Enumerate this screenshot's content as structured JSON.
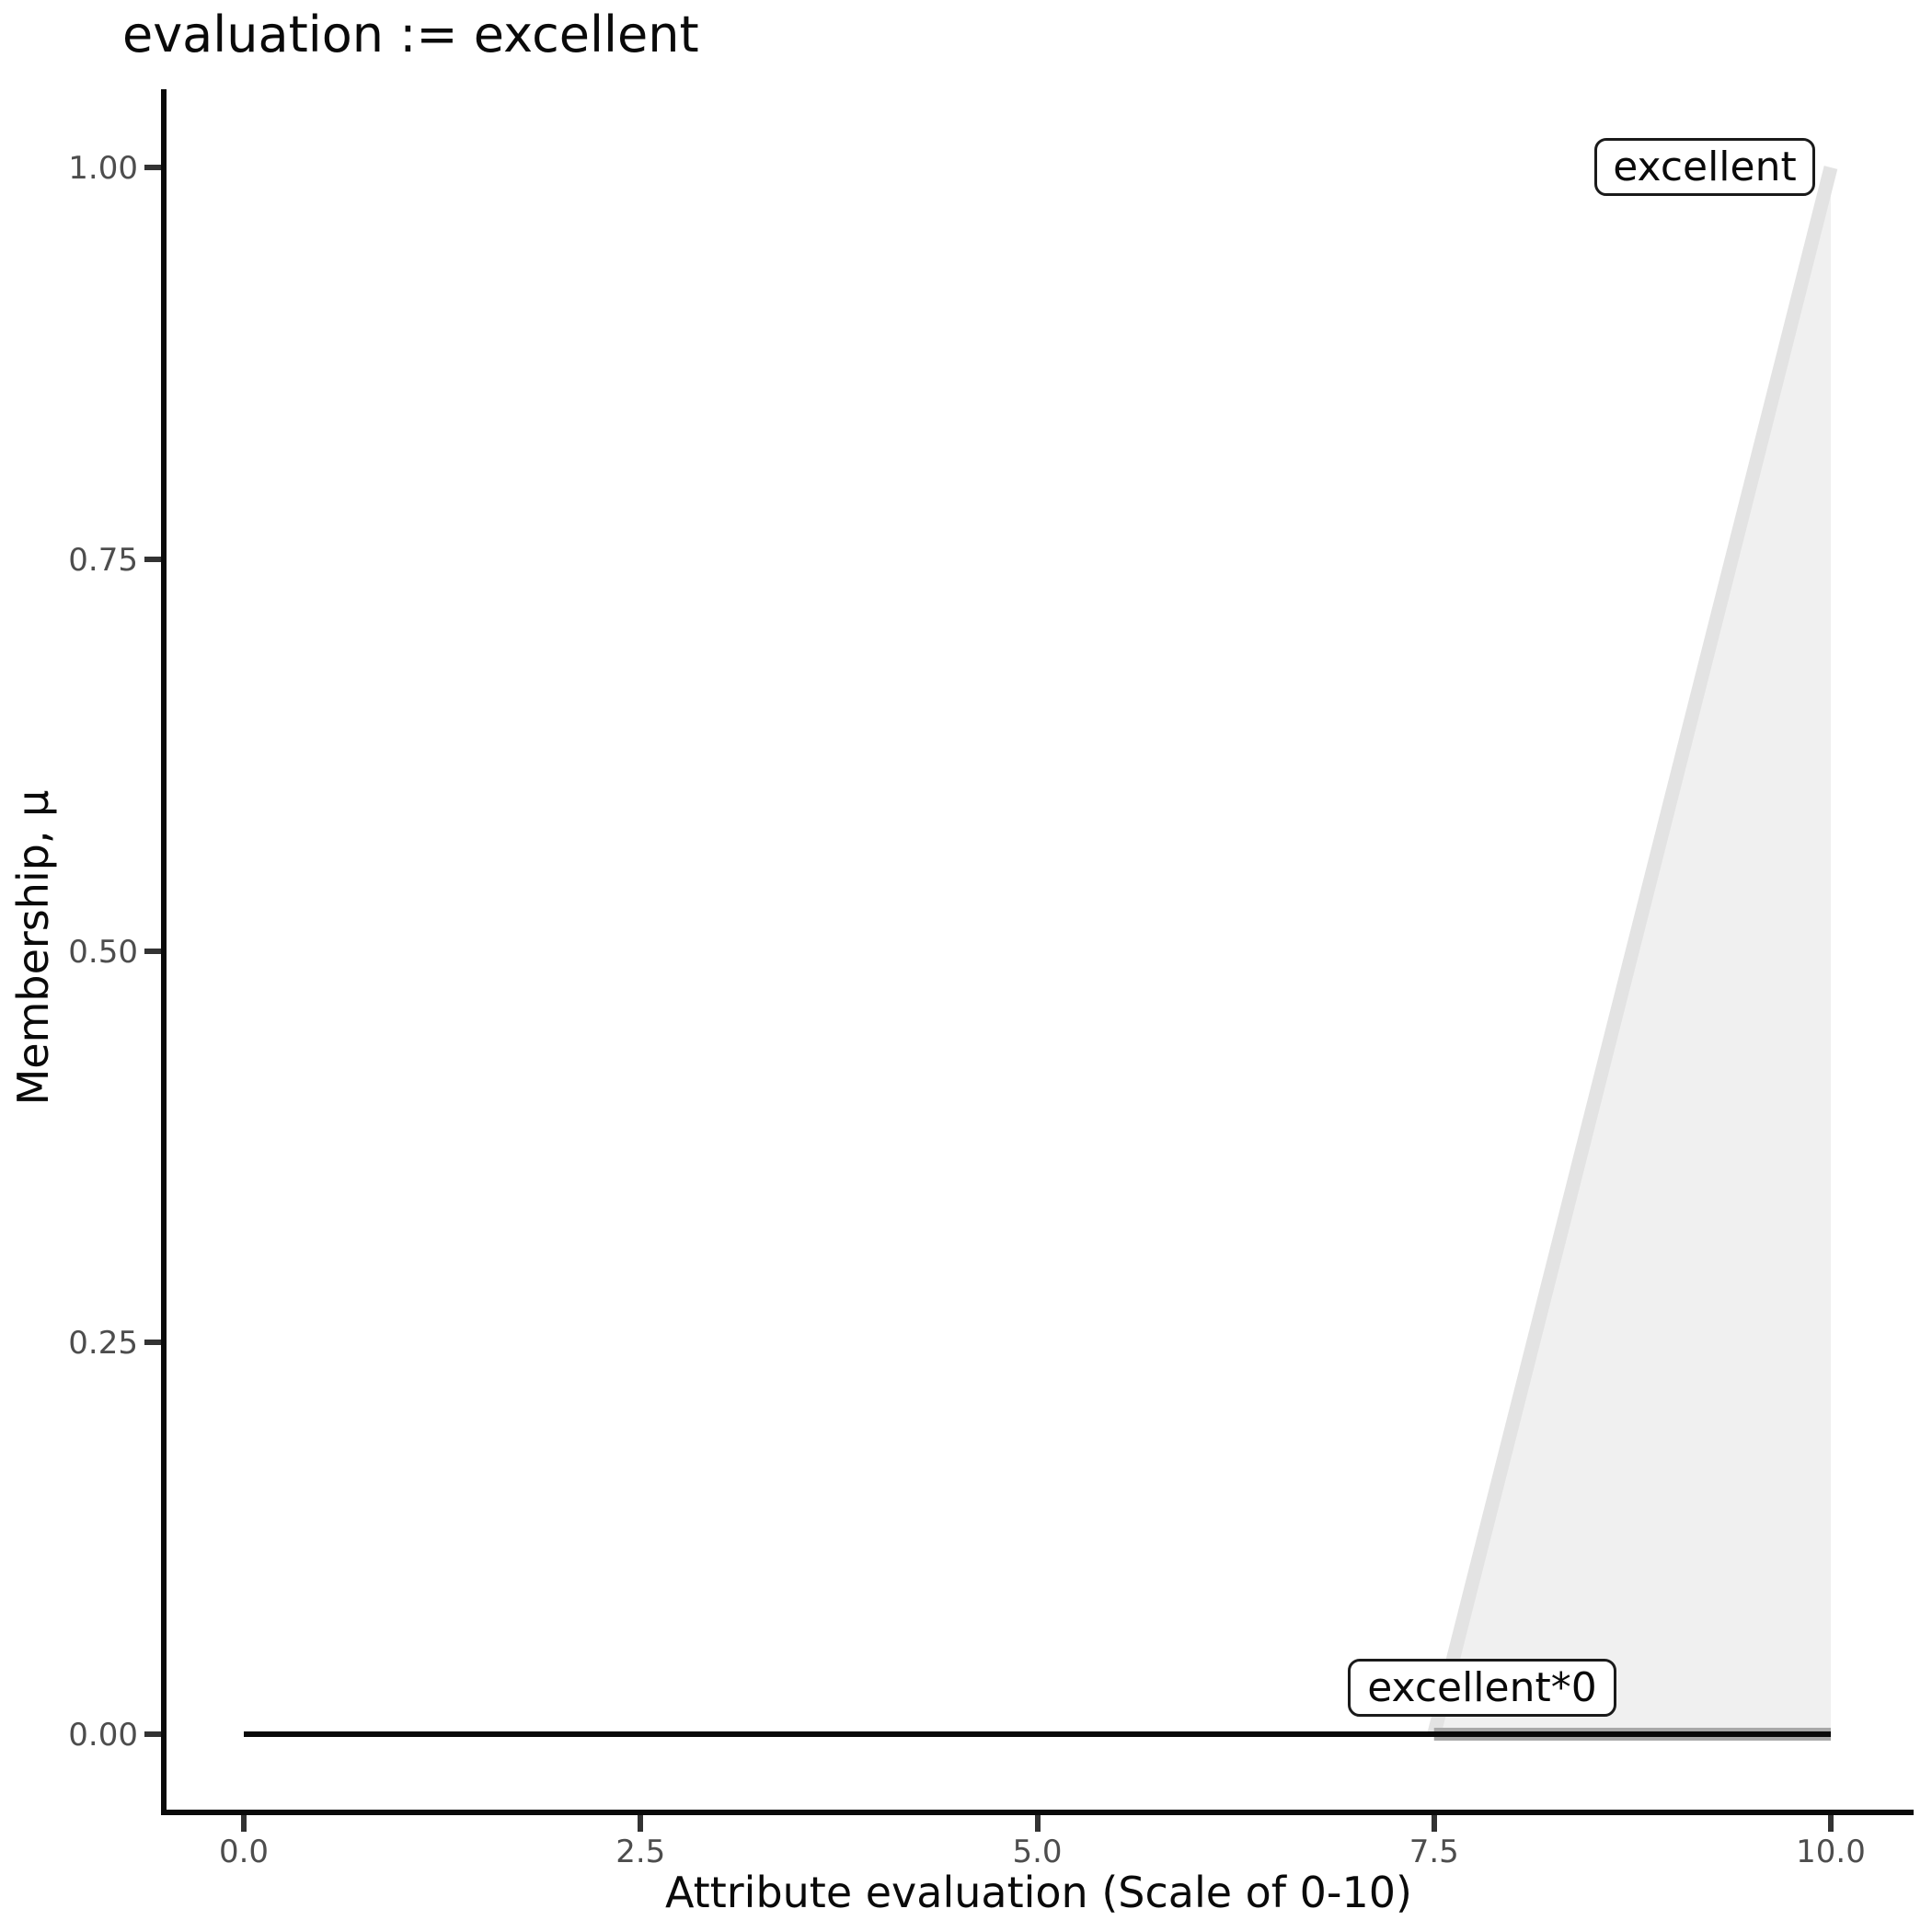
{
  "title": "evaluation := excellent",
  "x_axis": {
    "label": "Attribute evaluation (Scale of 0-10)",
    "ticks": [
      {
        "value": 0,
        "label": "0.0"
      },
      {
        "value": 2.5,
        "label": "2.5"
      },
      {
        "value": 5,
        "label": "5.0"
      },
      {
        "value": 7.5,
        "label": "7.5"
      },
      {
        "value": 10,
        "label": "10.0"
      }
    ]
  },
  "y_axis": {
    "label": "Membership, μ",
    "ticks": [
      {
        "value": 0,
        "label": "0.00"
      },
      {
        "value": 0.25,
        "label": "0.25"
      },
      {
        "value": 0.5,
        "label": "0.50"
      },
      {
        "value": 0.75,
        "label": "0.75"
      },
      {
        "value": 1,
        "label": "1.00"
      }
    ]
  },
  "colors": {
    "background": "#ffffff",
    "axis_line": "#0a0a0a",
    "tick_mark": "#333333",
    "tick_label": "#4d4d4d",
    "title_text": "#0a0a0a",
    "area_fill": "#f0f0f0",
    "area_boundary": "#e3e3e3",
    "support_band": "#a8a8a8",
    "zero_line": "#0a0a0a",
    "label_box_border": "#1a1a1a",
    "label_box_fill": "#ffffff"
  },
  "chart_data": {
    "type": "area",
    "title": "evaluation := excellent",
    "xlabel": "Attribute evaluation (Scale of 0-10)",
    "ylabel": "Membership, μ",
    "xlim": [
      0,
      10
    ],
    "ylim": [
      0,
      1
    ],
    "grid": false,
    "legend": "none",
    "description": "Fuzzy membership function 'excellent' (triangle rising from 7.5 to 10) shown as light gray area; rule-clipped set 'excellent*0' is flat at membership 0 across the domain, its support (7.5 to 10) drawn as a thick dark segment at y=0",
    "series": [
      {
        "name": "excellent-area",
        "type": "area",
        "points": [
          [
            7.5,
            0
          ],
          [
            10,
            1
          ],
          [
            10,
            0
          ]
        ],
        "fill": "#f0f0f0"
      },
      {
        "name": "excellent-boundary",
        "type": "line",
        "points": [
          [
            7.5,
            0
          ],
          [
            10,
            1
          ]
        ],
        "color": "#e3e3e3",
        "width": 15
      },
      {
        "name": "excellent-0-support",
        "type": "line",
        "points": [
          [
            7.5,
            0
          ],
          [
            10,
            0
          ]
        ],
        "color": "#a8a8a8",
        "width": 14
      },
      {
        "name": "excellent-0-line",
        "type": "line",
        "points": [
          [
            0,
            0
          ],
          [
            10,
            0
          ]
        ],
        "color": "#0a0a0a",
        "width": 6
      }
    ],
    "annotations": [
      {
        "text": "excellent",
        "x": 9.6,
        "y": 1.0
      },
      {
        "text": "excellent*0",
        "x": 8.05,
        "y": 0.03
      }
    ]
  }
}
